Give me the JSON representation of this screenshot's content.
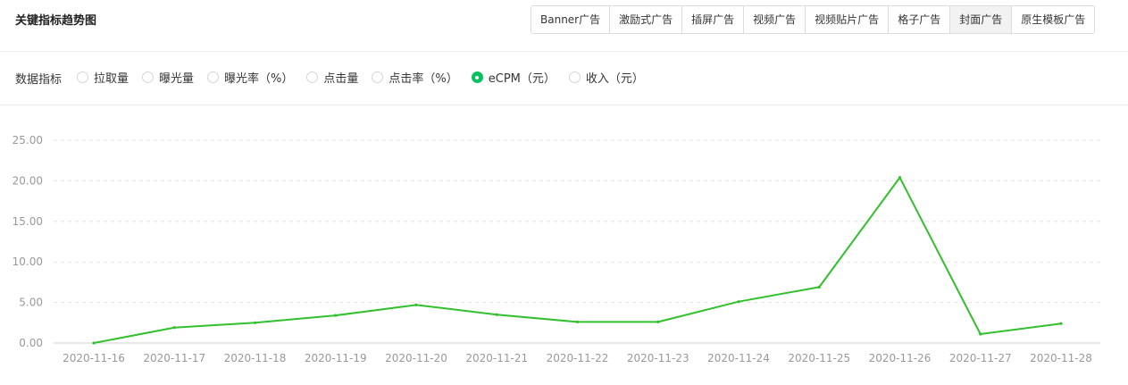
{
  "header": {
    "title": "关键指标趋势图",
    "tabs": [
      {
        "label": "Banner广告",
        "active": false
      },
      {
        "label": "激励式广告",
        "active": false
      },
      {
        "label": "插屏广告",
        "active": false
      },
      {
        "label": "视频广告",
        "active": false
      },
      {
        "label": "视频贴片广告",
        "active": false
      },
      {
        "label": "格子广告",
        "active": false
      },
      {
        "label": "封面广告",
        "active": true
      },
      {
        "label": "原生模板广告",
        "active": false
      }
    ]
  },
  "filter": {
    "label": "数据指标",
    "options": [
      {
        "label": "拉取量",
        "checked": false
      },
      {
        "label": "曝光量",
        "checked": false
      },
      {
        "label": "曝光率（%）",
        "checked": false
      },
      {
        "label": "点击量",
        "checked": false
      },
      {
        "label": "点击率（%）",
        "checked": false
      },
      {
        "label": "eCPM（元）",
        "checked": true
      },
      {
        "label": "收入（元）",
        "checked": false
      }
    ]
  },
  "chart_data": {
    "type": "line",
    "x": [
      "2020-11-16",
      "2020-11-17",
      "2020-11-18",
      "2020-11-19",
      "2020-11-20",
      "2020-11-21",
      "2020-11-22",
      "2020-11-23",
      "2020-11-24",
      "2020-11-25",
      "2020-11-26",
      "2020-11-27",
      "2020-11-28"
    ],
    "series": [
      {
        "values": [
          0.0,
          1.9,
          2.5,
          3.4,
          4.7,
          3.5,
          2.6,
          2.6,
          5.1,
          6.9,
          20.4,
          1.1,
          2.4
        ],
        "color": "#33c02e"
      }
    ],
    "yticks": [
      "0.00",
      "5.00",
      "10.00",
      "15.00",
      "20.00",
      "25.00"
    ],
    "ylim": [
      0,
      25
    ],
    "grid": true,
    "colors": {
      "line": "#33c02e",
      "grid": "#e3e3e3",
      "axis": "#cfcfcf",
      "tick_text": "#999999"
    }
  }
}
